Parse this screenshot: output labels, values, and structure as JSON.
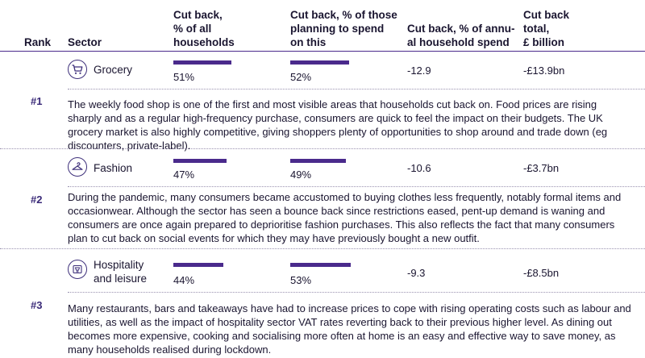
{
  "headers": {
    "rank": "Rank",
    "sector": "Sector",
    "cut_back_all": [
      "Cut back,",
      "% of all",
      "households"
    ],
    "cut_back_planning": [
      "Cut back, % of those",
      "planning to spend",
      "on this"
    ],
    "cut_back_annual": [
      "Cut back, % of annu-",
      "al household spend"
    ],
    "cut_back_total": [
      "Cut back",
      "total,",
      "£ billion"
    ]
  },
  "rows": [
    {
      "rank": "#1",
      "icon": "shopping-cart-icon",
      "sector": "Grocery",
      "pct_all": "51%",
      "pct_all_value": 51,
      "pct_planning": "52%",
      "pct_planning_value": 52,
      "annual": "-12.9",
      "total": "-£13.9bn",
      "description": "The weekly food shop is one of the first and most visible areas that households cut back on. Food prices are rising sharply and as a regular high-frequency purchase, consumers are quick to feel the impact on their budgets. The UK grocery market is also highly competitive, giving shoppers plenty of opportunities to shop around and trade down (eg discounters, private-label)."
    },
    {
      "rank": "#2",
      "icon": "clothes-hanger-icon",
      "sector": "Fashion",
      "pct_all": "47%",
      "pct_all_value": 47,
      "pct_planning": "49%",
      "pct_planning_value": 49,
      "annual": "-10.6",
      "total": "-£3.7bn",
      "description": "During the pandemic, many consumers became accustomed to buying clothes less frequently, notably formal items and occasionwear. Although the sector has seen a bounce back since restrictions eased, pent-up demand is waning and consumers are once again prepared to deprioritise fashion purchases. This also reflects the fact that many consumers plan to cut back on social events for which they may have previously bought a new outfit."
    },
    {
      "rank": "#3",
      "icon": "hospitality-glass-icon",
      "sector": [
        "Hospitality",
        "and leisure"
      ],
      "pct_all": "44%",
      "pct_all_value": 44,
      "pct_planning": "53%",
      "pct_planning_value": 53,
      "annual": "-9.3",
      "total": "-£8.5bn",
      "description": "Many restaurants, bars and takeaways have had to increase prices to cope with rising operating costs such as labour and utilities, as well as the impact of hospitality sector VAT rates reverting back to their previous higher level. As dining out becomes more expensive, cooking and socialising more often at home is an easy and effective way to save money, as many households realised during lockdown."
    }
  ],
  "colors": {
    "accent": "#4a2a8c",
    "text": "#1a1530",
    "rank": "#3a2a78"
  }
}
